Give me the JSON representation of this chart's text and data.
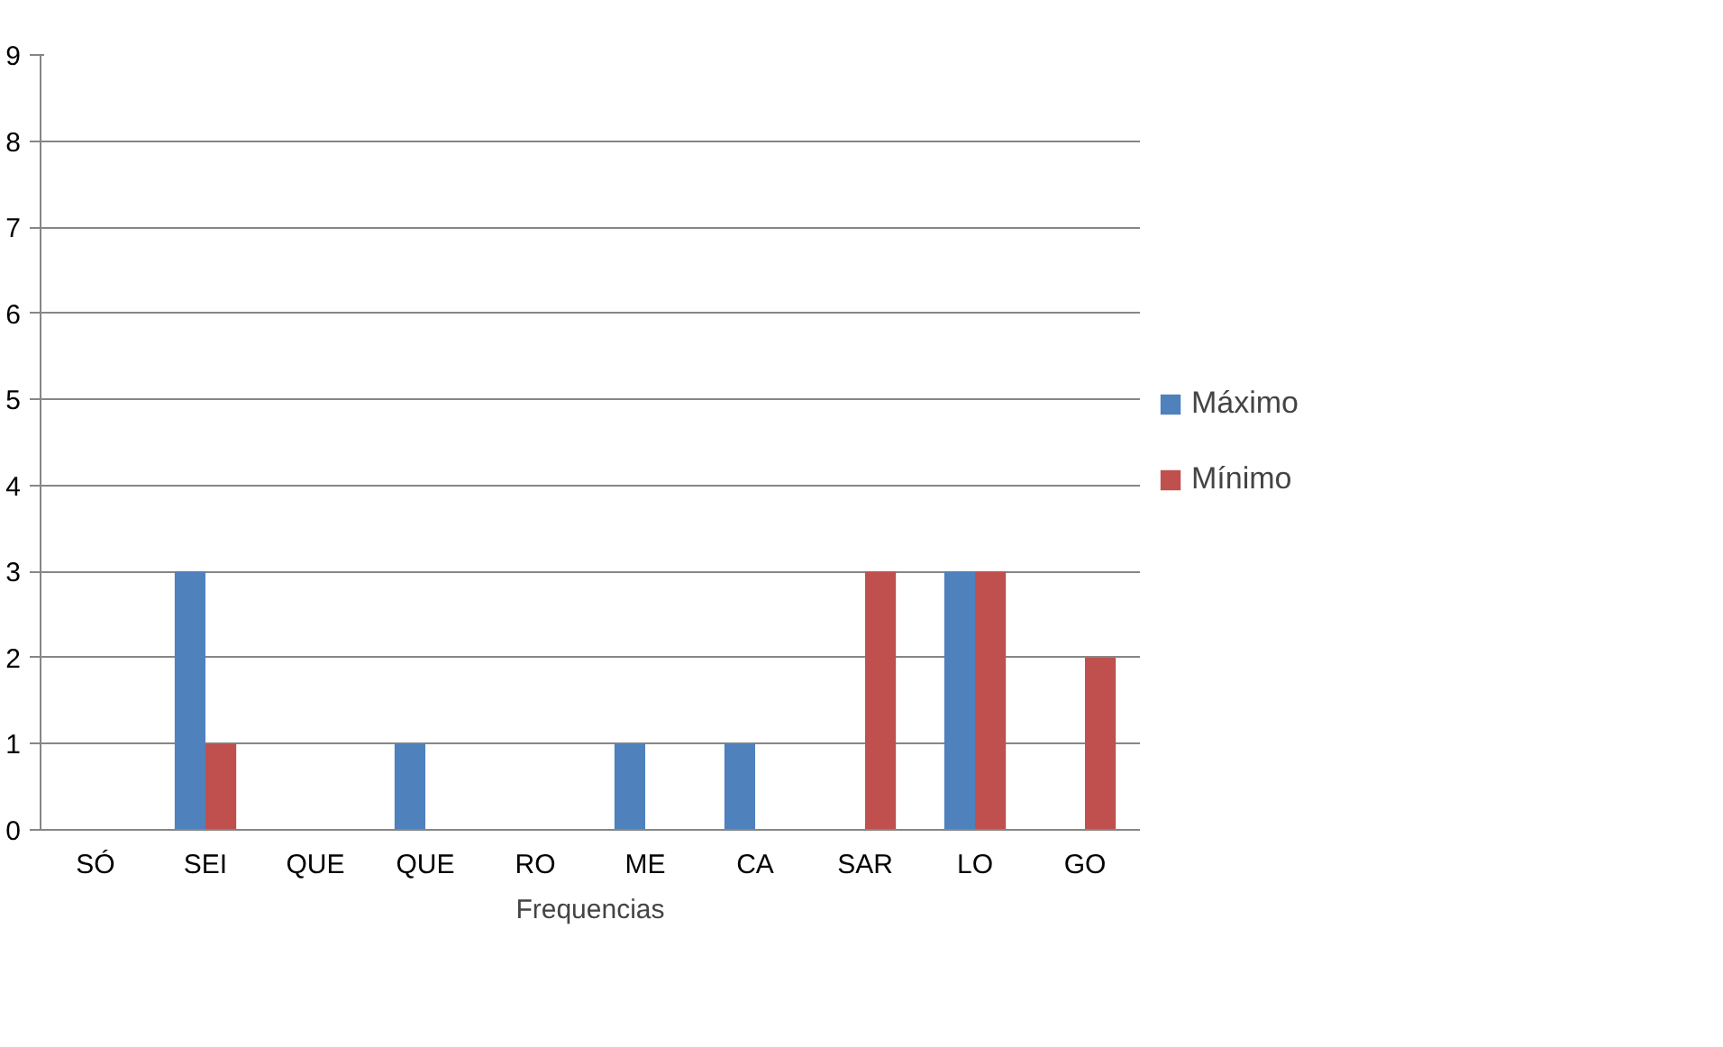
{
  "chart_data": {
    "type": "bar",
    "categories": [
      "SÓ",
      "SEI",
      "QUE",
      "QUE",
      "RO",
      "ME",
      "CA",
      "SAR",
      "LO",
      "GO"
    ],
    "xlabel": "Frequencias",
    "series": [
      {
        "name": "Máximo",
        "color": "#4f81bd",
        "values": [
          0,
          3,
          0,
          1,
          0,
          1,
          1,
          0,
          3,
          0
        ]
      },
      {
        "name": "Mínimo",
        "color": "#c0504d",
        "values": [
          0,
          1,
          0,
          0,
          0,
          0,
          0,
          3,
          3,
          2
        ]
      }
    ],
    "ylim": [
      0,
      9
    ],
    "yticks": [
      0,
      1,
      2,
      3,
      4,
      5,
      6,
      7,
      8,
      9
    ],
    "grid": "y",
    "legend": "right"
  }
}
